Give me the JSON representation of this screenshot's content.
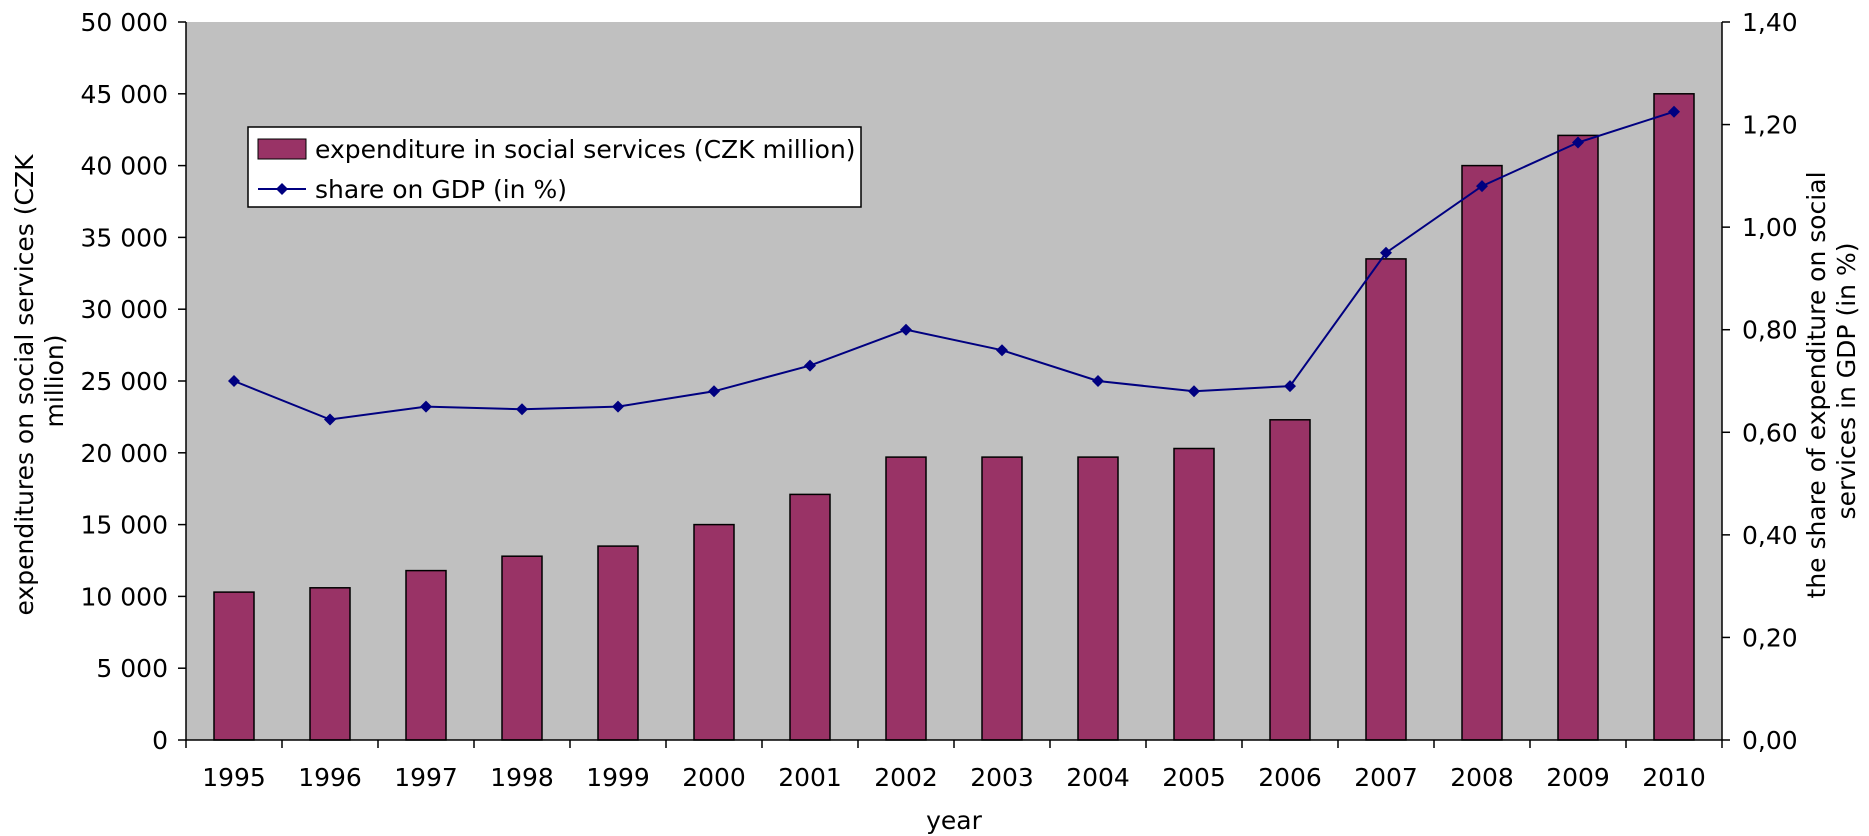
{
  "chart_data": {
    "type": "bar",
    "categories": [
      "1995",
      "1996",
      "1997",
      "1998",
      "1999",
      "2000",
      "2001",
      "2002",
      "2003",
      "2004",
      "2005",
      "2006",
      "2007",
      "2008",
      "2009",
      "2010"
    ],
    "series": [
      {
        "name": "expenditure in social services (CZK million)",
        "kind": "bar",
        "axis": "left",
        "color": "#993366",
        "values": [
          10300,
          10600,
          11800,
          12800,
          13500,
          15000,
          17100,
          19700,
          19700,
          19700,
          20300,
          22300,
          33500,
          40000,
          42100,
          45000
        ]
      },
      {
        "name": "share on GDP (in %)",
        "kind": "line",
        "axis": "right",
        "color": "#000080",
        "marker": "diamond",
        "values": [
          0.7,
          0.625,
          0.65,
          0.645,
          0.65,
          0.68,
          0.73,
          0.8,
          0.76,
          0.7,
          0.68,
          0.69,
          0.95,
          1.08,
          1.165,
          1.225
        ]
      }
    ],
    "xlabel": "year",
    "ylabel_left": "expenditures on social services (CZK million)",
    "ylabel_left_lines": [
      "expenditures on social services (CZK",
      "million)"
    ],
    "ylabel_right": "the share of expenditure on social services in GDP (in %)",
    "ylabel_right_lines": [
      "the share of expenditure on social",
      "services in GDP (in %)"
    ],
    "ylim_left": [
      0,
      50000
    ],
    "ylim_right": [
      0,
      1.4
    ],
    "yticks_left": [
      "0",
      "5 000",
      "10 000",
      "15 000",
      "20 000",
      "25 000",
      "30 000",
      "35 000",
      "40 000",
      "45 000",
      "50 000"
    ],
    "yticks_right": [
      "0,00",
      "0,20",
      "0,40",
      "0,60",
      "0,80",
      "1,00",
      "1,20",
      "1,40"
    ],
    "plot_background": "#c0c0c0",
    "grid": false,
    "legend_position": "top-left"
  }
}
